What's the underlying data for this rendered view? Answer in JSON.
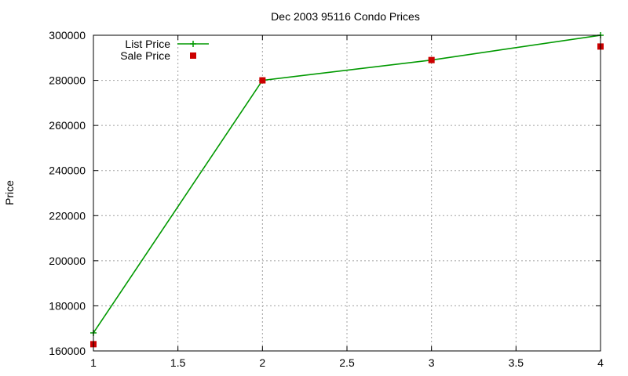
{
  "chart_data": {
    "type": "line",
    "title": "Dec 2003 95116 Condo Prices",
    "xlabel": "",
    "ylabel": "Price",
    "xlim": [
      1,
      4
    ],
    "ylim": [
      160000,
      300000
    ],
    "xticks": [
      1,
      1.5,
      2,
      2.5,
      3,
      3.5,
      4
    ],
    "xtick_labels": [
      "1",
      "1.5",
      "2",
      "2.5",
      "3",
      "3.5",
      "4"
    ],
    "yticks": [
      160000,
      180000,
      200000,
      220000,
      240000,
      260000,
      280000,
      300000
    ],
    "ytick_labels": [
      "160000",
      "180000",
      "200000",
      "220000",
      "240000",
      "260000",
      "280000",
      "300000"
    ],
    "grid": true,
    "legend_position": "top-left",
    "series": [
      {
        "name": "List Price",
        "style": "line-with-plus-markers",
        "color": "#009900",
        "x": [
          1,
          2,
          3,
          4
        ],
        "y": [
          168000,
          280000,
          289000,
          300000
        ]
      },
      {
        "name": "Sale Price",
        "style": "square-markers",
        "color": "#cc0000",
        "x": [
          1,
          2,
          3,
          4
        ],
        "y": [
          163000,
          280000,
          289000,
          295000
        ]
      }
    ]
  }
}
